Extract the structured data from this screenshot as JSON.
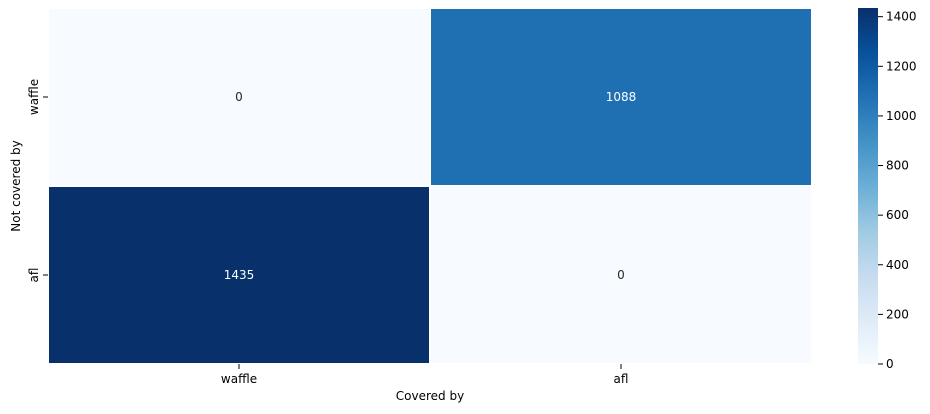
{
  "chart_data": {
    "type": "heatmap",
    "title": "",
    "xlabel": "Covered by",
    "ylabel": "Not covered by",
    "x_categories": [
      "waffle",
      "afl"
    ],
    "y_categories": [
      "waffle",
      "afl"
    ],
    "values": [
      [
        0,
        1088
      ],
      [
        1435,
        0
      ]
    ],
    "value_labels": [
      [
        "0",
        "1088"
      ],
      [
        "1435",
        "0"
      ]
    ],
    "colormap": "Blues",
    "colorbar": {
      "min": 0,
      "max": 1435,
      "ticks": [
        0,
        200,
        400,
        600,
        800,
        1000,
        1200,
        1400
      ],
      "tick_labels": [
        "0",
        "200",
        "400",
        "600",
        "800",
        "1000",
        "1200",
        "1400"
      ]
    },
    "colors": {
      "low": "#f7fbff",
      "mid": "#6baed6",
      "high": "#08306b"
    },
    "grid": false,
    "legend": "colorbar-right"
  }
}
